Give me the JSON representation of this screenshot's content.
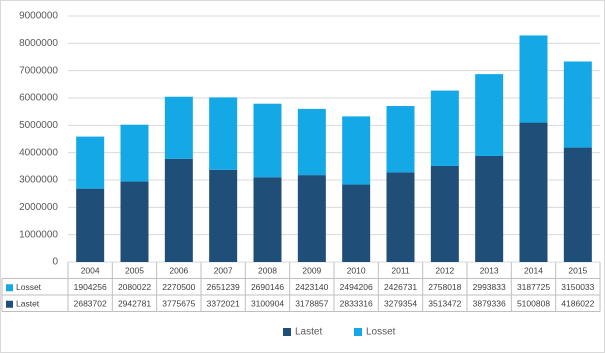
{
  "chart_data": {
    "type": "bar",
    "stacked": true,
    "categories": [
      "2004",
      "2005",
      "2006",
      "2007",
      "2008",
      "2009",
      "2010",
      "2011",
      "2012",
      "2013",
      "2014",
      "2015"
    ],
    "series": [
      {
        "name": "Lastet",
        "color": "#1f4e79",
        "values": [
          2683702,
          2942781,
          3775675,
          3372021,
          3100904,
          3178857,
          2833316,
          3279354,
          3513472,
          3879336,
          5100808,
          4186022
        ]
      },
      {
        "name": "Losset",
        "color": "#14a8e6",
        "values": [
          1904256,
          2080022,
          2270500,
          2651239,
          2690146,
          2423140,
          2494206,
          2426731,
          2758018,
          2993833,
          3187725,
          3150033
        ]
      }
    ],
    "ylim": [
      0,
      9000000
    ],
    "yticks": [
      0,
      1000000,
      2000000,
      3000000,
      4000000,
      5000000,
      6000000,
      7000000,
      8000000,
      9000000
    ],
    "grid": true,
    "legend": "bottom",
    "data_table": true
  }
}
